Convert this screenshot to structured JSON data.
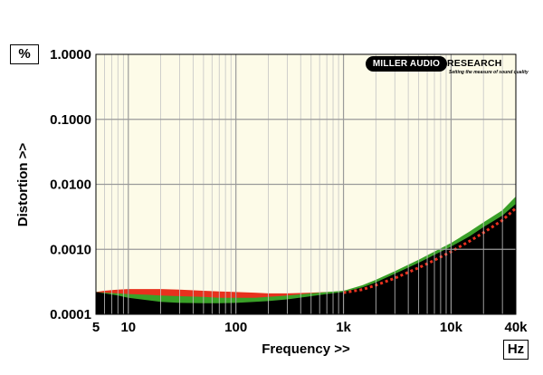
{
  "chart_data": {
    "type": "area",
    "title": "",
    "xlabel": "Frequency >>",
    "ylabel": "Distortion >>",
    "x_unit": "Hz",
    "y_unit": "%",
    "x_scale": "log",
    "y_scale": "log",
    "xlim": [
      5,
      40000
    ],
    "ylim": [
      0.0001,
      1.0
    ],
    "grid": true,
    "x_ticks": [
      {
        "value": 5,
        "label": "5"
      },
      {
        "value": 10,
        "label": "10"
      },
      {
        "value": 100,
        "label": "100"
      },
      {
        "value": 1000,
        "label": "1k"
      },
      {
        "value": 10000,
        "label": "10k"
      },
      {
        "value": 40000,
        "label": "40k"
      }
    ],
    "y_ticks": [
      {
        "value": 1.0,
        "label": "1.0000"
      },
      {
        "value": 0.1,
        "label": "0.1000"
      },
      {
        "value": 0.01,
        "label": "0.0100"
      },
      {
        "value": 0.001,
        "label": "0.0010"
      },
      {
        "value": 0.0001,
        "label": "0.0001"
      }
    ],
    "colors": {
      "plot_background": "#fdfbe8",
      "black_series": "#000000",
      "green_series": "#3aa028",
      "red_series": "#e8311e",
      "dotted_series": "#e8311e"
    },
    "series": [
      {
        "style": "area",
        "color": "black",
        "x": [
          5,
          6,
          8,
          10,
          15,
          20,
          30,
          50,
          70,
          100,
          150,
          200,
          300,
          500,
          700,
          1000,
          1500,
          2000,
          3000,
          5000,
          7000,
          10000,
          15000,
          20000,
          30000,
          40000
        ],
        "y": [
          0.00022,
          0.00021,
          0.000195,
          0.00018,
          0.000165,
          0.000155,
          0.00015,
          0.000148,
          0.000148,
          0.00015,
          0.000155,
          0.00016,
          0.00017,
          0.00019,
          0.000205,
          0.00022,
          0.00026,
          0.00031,
          0.00042,
          0.00062,
          0.00082,
          0.0011,
          0.0016,
          0.0022,
          0.0033,
          0.005
        ]
      },
      {
        "style": "area",
        "color": "green",
        "x": [
          5,
          6,
          8,
          10,
          15,
          20,
          30,
          50,
          70,
          100,
          150,
          200,
          300,
          500,
          700,
          1000,
          1500,
          2000,
          3000,
          5000,
          7000,
          10000,
          15000,
          20000,
          30000,
          40000
        ],
        "y": [
          0.00022,
          0.000215,
          0.00021,
          0.000205,
          0.0002,
          0.000195,
          0.00019,
          0.000185,
          0.00018,
          0.00018,
          0.00018,
          0.000185,
          0.000195,
          0.00021,
          0.00022,
          0.00023,
          0.00028,
          0.00034,
          0.00046,
          0.00069,
          0.00092,
          0.00125,
          0.0019,
          0.0026,
          0.004,
          0.0065
        ]
      },
      {
        "style": "area",
        "color": "red",
        "x": [
          5,
          6,
          8,
          10,
          15,
          20,
          30,
          50,
          70,
          100,
          150,
          200,
          300,
          500,
          700,
          1000
        ],
        "y": [
          0.00022,
          0.00023,
          0.00024,
          0.000245,
          0.000245,
          0.000245,
          0.00024,
          0.00023,
          0.000225,
          0.00022,
          0.000215,
          0.00021,
          0.00021,
          0.000215,
          0.00022,
          0.000225
        ]
      },
      {
        "style": "dotted-line",
        "color": "red",
        "x": [
          1000,
          1500,
          2000,
          3000,
          5000,
          7000,
          10000,
          15000,
          20000,
          30000,
          40000
        ],
        "y": [
          0.000215,
          0.00024,
          0.00028,
          0.00036,
          0.00052,
          0.00068,
          0.00092,
          0.00135,
          0.0018,
          0.0028,
          0.0043
        ]
      }
    ]
  },
  "logo": {
    "left_text": "MILLER AUDIO",
    "right_text": "RESEARCH",
    "tagline": "Setting the measure of sound quality"
  }
}
